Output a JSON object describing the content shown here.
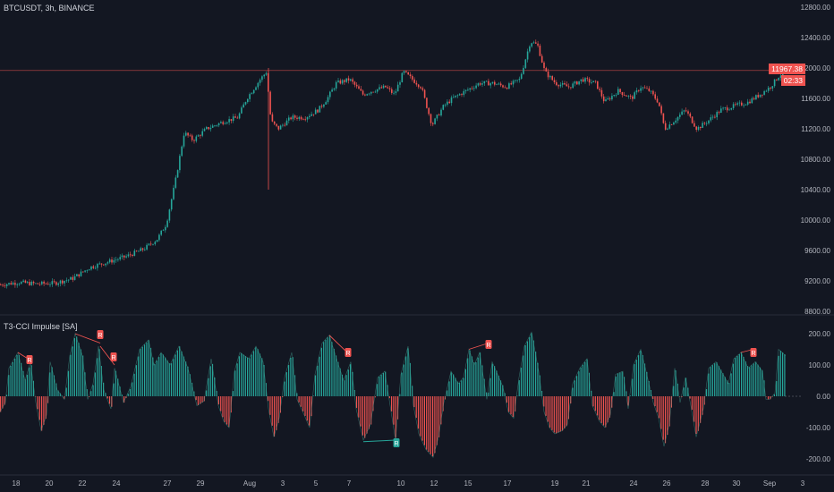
{
  "header": {
    "symbol_line": "BTCUSDT, 3h, BINANCE",
    "indicator_line": "T3-CCI Impulse [SA]"
  },
  "colors": {
    "background": "#131722",
    "up": "#26a69a",
    "down": "#ef5350",
    "grid": "#1e222d",
    "text": "#b2b5be",
    "price_line": "#ef5350"
  },
  "price_tags": {
    "last": "11967.38",
    "countdown": "02:33"
  },
  "chart_data": [
    {
      "type": "candlestick",
      "title": "BTCUSDT, 3h, BINANCE",
      "x_ticks": [
        "18",
        "20",
        "22",
        "24",
        "27",
        "29",
        "Aug",
        "3",
        "5",
        "7",
        "10",
        "12",
        "15",
        "17",
        "19",
        "21",
        "24",
        "26",
        "28",
        "30",
        "Sep",
        "3"
      ],
      "y_ticks": [
        "12800.00",
        "12400.00",
        "12000.00",
        "11600.00",
        "11200.00",
        "10800.00",
        "10400.00",
        "10000.00",
        "9600.00",
        "9200.00",
        "8800.00"
      ],
      "ylim": [
        8800,
        12800
      ],
      "last_price": 11967.38,
      "path_keypoints": [
        [
          0,
          9150
        ],
        [
          20,
          9180
        ],
        [
          40,
          9160
        ],
        [
          60,
          9170
        ],
        [
          80,
          9230
        ],
        [
          100,
          9380
        ],
        [
          120,
          9450
        ],
        [
          140,
          9520
        ],
        [
          160,
          9620
        ],
        [
          175,
          9750
        ],
        [
          185,
          9950
        ],
        [
          195,
          10500
        ],
        [
          205,
          11150
        ],
        [
          215,
          11050
        ],
        [
          230,
          11200
        ],
        [
          250,
          11300
        ],
        [
          265,
          11350
        ],
        [
          275,
          11600
        ],
        [
          290,
          11850
        ],
        [
          297,
          11950
        ],
        [
          302,
          11300
        ],
        [
          310,
          11200
        ],
        [
          325,
          11350
        ],
        [
          340,
          11350
        ],
        [
          355,
          11450
        ],
        [
          365,
          11600
        ],
        [
          375,
          11800
        ],
        [
          390,
          11850
        ],
        [
          405,
          11650
        ],
        [
          415,
          11700
        ],
        [
          430,
          11750
        ],
        [
          440,
          11650
        ],
        [
          450,
          11950
        ],
        [
          460,
          11850
        ],
        [
          470,
          11750
        ],
        [
          482,
          11250
        ],
        [
          495,
          11500
        ],
        [
          505,
          11600
        ],
        [
          520,
          11700
        ],
        [
          535,
          11800
        ],
        [
          550,
          11800
        ],
        [
          565,
          11750
        ],
        [
          580,
          11850
        ],
        [
          592,
          12350
        ],
        [
          600,
          12300
        ],
        [
          608,
          11950
        ],
        [
          620,
          11800
        ],
        [
          635,
          11750
        ],
        [
          650,
          11850
        ],
        [
          665,
          11800
        ],
        [
          675,
          11550
        ],
        [
          690,
          11700
        ],
        [
          705,
          11600
        ],
        [
          715,
          11750
        ],
        [
          725,
          11700
        ],
        [
          735,
          11550
        ],
        [
          742,
          11200
        ],
        [
          752,
          11300
        ],
        [
          765,
          11450
        ],
        [
          778,
          11200
        ],
        [
          790,
          11300
        ],
        [
          805,
          11450
        ],
        [
          820,
          11500
        ],
        [
          835,
          11550
        ],
        [
          848,
          11650
        ],
        [
          860,
          11750
        ],
        [
          870,
          11900
        ],
        [
          878,
          11970
        ]
      ]
    },
    {
      "type": "histogram",
      "title": "T3-CCI Impulse [SA]",
      "y_ticks": [
        "200.00",
        "100.00",
        "0.00",
        "-100.00",
        "-200.00"
      ],
      "ylim": [
        -230,
        230
      ],
      "signal_label": "R",
      "wave_keypoints": [
        [
          0,
          -50
        ],
        [
          6,
          -20
        ],
        [
          10,
          90
        ],
        [
          20,
          140
        ],
        [
          28,
          50
        ],
        [
          34,
          110
        ],
        [
          40,
          -20
        ],
        [
          46,
          -110
        ],
        [
          52,
          -60
        ],
        [
          56,
          110
        ],
        [
          64,
          20
        ],
        [
          72,
          -10
        ],
        [
          78,
          130
        ],
        [
          84,
          200
        ],
        [
          92,
          130
        ],
        [
          98,
          -10
        ],
        [
          104,
          40
        ],
        [
          110,
          160
        ],
        [
          116,
          20
        ],
        [
          124,
          -40
        ],
        [
          128,
          90
        ],
        [
          138,
          -20
        ],
        [
          146,
          30
        ],
        [
          156,
          150
        ],
        [
          166,
          180
        ],
        [
          172,
          100
        ],
        [
          180,
          140
        ],
        [
          190,
          100
        ],
        [
          200,
          160
        ],
        [
          210,
          90
        ],
        [
          220,
          -30
        ],
        [
          228,
          -15
        ],
        [
          236,
          120
        ],
        [
          244,
          -30
        ],
        [
          250,
          -80
        ],
        [
          256,
          -100
        ],
        [
          262,
          80
        ],
        [
          268,
          140
        ],
        [
          278,
          120
        ],
        [
          286,
          160
        ],
        [
          294,
          110
        ],
        [
          300,
          -40
        ],
        [
          306,
          -130
        ],
        [
          312,
          -70
        ],
        [
          318,
          60
        ],
        [
          326,
          140
        ],
        [
          332,
          -10
        ],
        [
          340,
          -60
        ],
        [
          346,
          -100
        ],
        [
          352,
          70
        ],
        [
          360,
          170
        ],
        [
          368,
          195
        ],
        [
          376,
          120
        ],
        [
          384,
          50
        ],
        [
          392,
          110
        ],
        [
          398,
          -40
        ],
        [
          406,
          -140
        ],
        [
          414,
          -90
        ],
        [
          422,
          60
        ],
        [
          430,
          80
        ],
        [
          436,
          -30
        ],
        [
          442,
          -140
        ],
        [
          448,
          70
        ],
        [
          456,
          160
        ],
        [
          462,
          -30
        ],
        [
          468,
          -120
        ],
        [
          476,
          -170
        ],
        [
          484,
          -195
        ],
        [
          490,
          -130
        ],
        [
          496,
          -20
        ],
        [
          504,
          80
        ],
        [
          512,
          40
        ],
        [
          518,
          60
        ],
        [
          524,
          150
        ],
        [
          530,
          100
        ],
        [
          536,
          140
        ],
        [
          544,
          -10
        ],
        [
          550,
          110
        ],
        [
          556,
          70
        ],
        [
          562,
          30
        ],
        [
          568,
          -50
        ],
        [
          574,
          -70
        ],
        [
          580,
          60
        ],
        [
          586,
          160
        ],
        [
          594,
          205
        ],
        [
          602,
          80
        ],
        [
          608,
          -50
        ],
        [
          614,
          -100
        ],
        [
          620,
          -120
        ],
        [
          628,
          -110
        ],
        [
          634,
          -90
        ],
        [
          640,
          40
        ],
        [
          648,
          90
        ],
        [
          656,
          120
        ],
        [
          662,
          -30
        ],
        [
          670,
          -80
        ],
        [
          676,
          -100
        ],
        [
          682,
          -60
        ],
        [
          688,
          70
        ],
        [
          696,
          80
        ],
        [
          702,
          -40
        ],
        [
          708,
          100
        ],
        [
          716,
          150
        ],
        [
          722,
          80
        ],
        [
          730,
          -20
        ],
        [
          736,
          -70
        ],
        [
          742,
          -160
        ],
        [
          748,
          -90
        ],
        [
          754,
          90
        ],
        [
          760,
          -20
        ],
        [
          766,
          60
        ],
        [
          772,
          -30
        ],
        [
          778,
          -130
        ],
        [
          786,
          -40
        ],
        [
          792,
          90
        ],
        [
          800,
          110
        ],
        [
          808,
          70
        ],
        [
          814,
          40
        ],
        [
          820,
          120
        ],
        [
          828,
          140
        ],
        [
          836,
          90
        ],
        [
          844,
          110
        ],
        [
          852,
          80
        ],
        [
          856,
          -10
        ],
        [
          860,
          -10
        ],
        [
          866,
          10
        ],
        [
          870,
          150
        ],
        [
          878,
          130
        ]
      ]
    }
  ]
}
